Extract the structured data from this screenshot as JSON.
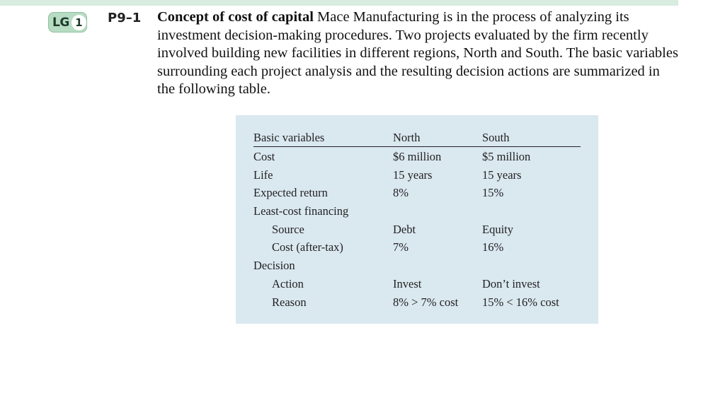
{
  "badge": {
    "prefix": "LG",
    "number": "1"
  },
  "problem": {
    "number": "P9–1",
    "title": "Concept of cost of capital",
    "body": "Mace Manufacturing is in the process of analyzing its investment decision-making procedures. Two projects evaluated by the firm recently involved building new facilities in different regions, North and South. The basic variables surrounding each project analysis and the resulting decision actions are summarized in the following table."
  },
  "table": {
    "headers": [
      "Basic variables",
      "North",
      "South"
    ],
    "rows": [
      {
        "label": "Cost",
        "north": "$6 million",
        "south": "$5 million",
        "indent": false
      },
      {
        "label": "Life",
        "north": "15 years",
        "south": "15 years",
        "indent": false
      },
      {
        "label": "Expected return",
        "north": "8%",
        "south": "15%",
        "indent": false
      },
      {
        "label": "Least-cost financing",
        "north": "",
        "south": "",
        "indent": false
      },
      {
        "label": "Source",
        "north": "Debt",
        "south": "Equity",
        "indent": true
      },
      {
        "label": "Cost (after-tax)",
        "north": "7%",
        "south": "16%",
        "indent": true
      },
      {
        "label": "Decision",
        "north": "",
        "south": "",
        "indent": false
      },
      {
        "label": "Action",
        "north": "Invest",
        "south": "Don’t invest",
        "indent": true
      },
      {
        "label": "Reason",
        "north": "8% > 7% cost",
        "south": "15% < 16% cost",
        "indent": true
      }
    ]
  }
}
